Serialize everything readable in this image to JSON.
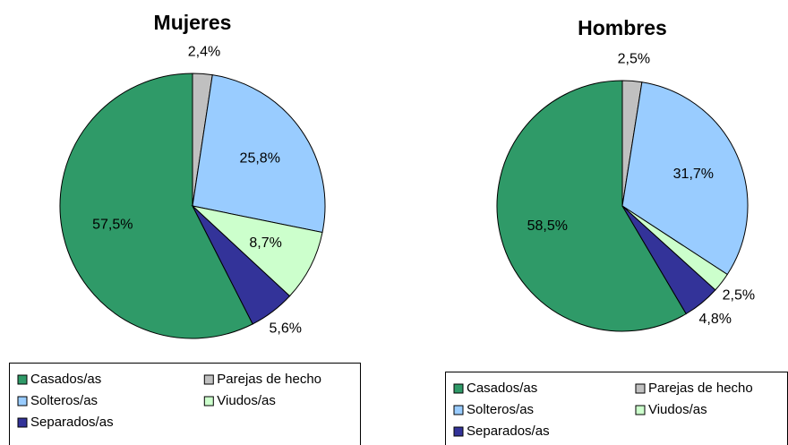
{
  "chart_data": [
    {
      "type": "pie",
      "title": "Mujeres",
      "categories": [
        "Casados/as",
        "Parejas de hecho",
        "Solteros/as",
        "Viudos/as",
        "Separados/as"
      ],
      "values": [
        57.5,
        2.4,
        25.8,
        8.7,
        5.6
      ],
      "value_labels": [
        "57,5%",
        "2,4%",
        "25,8%",
        "8,7%",
        "5,6%"
      ],
      "colors": [
        "#2f9a68",
        "#c0c0c0",
        "#99ccff",
        "#ccffcc",
        "#333399"
      ]
    },
    {
      "type": "pie",
      "title": "Hombres",
      "categories": [
        "Casados/as",
        "Parejas de hecho",
        "Solteros/as",
        "Viudos/as",
        "Separados/as"
      ],
      "values": [
        58.5,
        2.5,
        31.7,
        2.5,
        4.8
      ],
      "value_labels": [
        "58,5%",
        "2,5%",
        "31,7%",
        "2,5%",
        "4,8%"
      ],
      "colors": [
        "#2f9a68",
        "#c0c0c0",
        "#99ccff",
        "#ccffcc",
        "#333399"
      ]
    }
  ]
}
